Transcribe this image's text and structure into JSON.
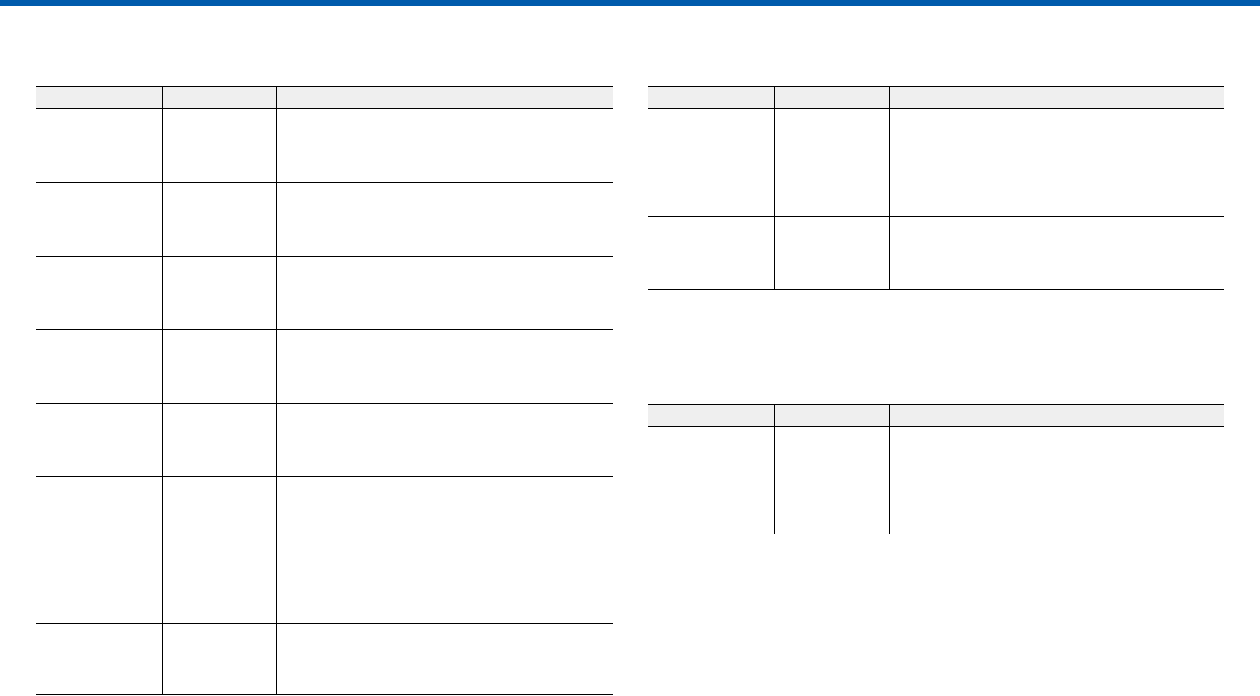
{
  "header": {
    "accent_color": "#005bac"
  },
  "tables": [
    {
      "rows": 8
    },
    {
      "rows": 2
    },
    {
      "rows": 1
    }
  ]
}
